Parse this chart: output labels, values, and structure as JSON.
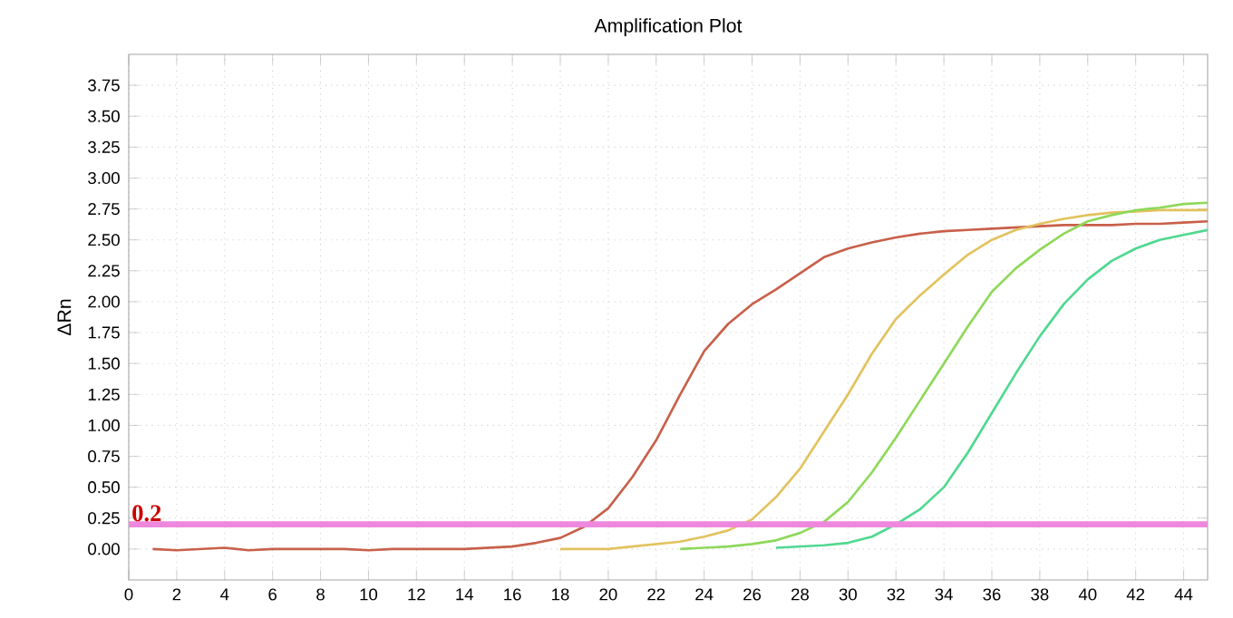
{
  "chart_data": {
    "type": "line",
    "title": "Amplification Plot",
    "ylabel": "ΔRn",
    "x": [
      1,
      2,
      3,
      4,
      5,
      6,
      7,
      8,
      9,
      10,
      11,
      12,
      13,
      14,
      15,
      16,
      17,
      18,
      19,
      20,
      21,
      22,
      23,
      24,
      25,
      26,
      27,
      28,
      29,
      30,
      31,
      32,
      33,
      34,
      35,
      36,
      37,
      38,
      39,
      40,
      41,
      42,
      43,
      44,
      45
    ],
    "series": [
      {
        "color": "#c8604a",
        "values": [
          0,
          -0.01,
          0,
          0.01,
          -0.01,
          0,
          0,
          0,
          0,
          -0.01,
          0,
          0,
          0,
          0,
          0.01,
          0.02,
          0.05,
          0.09,
          0.18,
          0.33,
          0.58,
          0.88,
          1.25,
          1.6,
          1.82,
          1.98,
          2.1,
          2.23,
          2.36,
          2.43,
          2.48,
          2.52,
          2.55,
          2.57,
          2.58,
          2.59,
          2.6,
          2.61,
          2.62,
          2.62,
          2.62,
          2.63,
          2.63,
          2.64,
          2.65
        ]
      },
      {
        "color": "#e2c25e",
        "values": [
          null,
          null,
          null,
          null,
          null,
          null,
          null,
          null,
          null,
          null,
          null,
          null,
          null,
          null,
          null,
          null,
          null,
          0,
          0,
          0,
          0.02,
          0.04,
          0.06,
          0.1,
          0.15,
          0.24,
          0.42,
          0.65,
          0.95,
          1.25,
          1.58,
          1.86,
          2.05,
          2.22,
          2.38,
          2.5,
          2.58,
          2.63,
          2.67,
          2.7,
          2.72,
          2.73,
          2.74,
          2.74,
          2.74
        ]
      },
      {
        "color": "#8ed85a",
        "values": [
          null,
          null,
          null,
          null,
          null,
          null,
          null,
          null,
          null,
          null,
          null,
          null,
          null,
          null,
          null,
          null,
          null,
          null,
          null,
          null,
          null,
          null,
          0,
          0.01,
          0.02,
          0.04,
          0.07,
          0.13,
          0.22,
          0.38,
          0.62,
          0.9,
          1.2,
          1.5,
          1.8,
          2.08,
          2.27,
          2.42,
          2.55,
          2.65,
          2.7,
          2.74,
          2.76,
          2.79,
          2.8
        ]
      },
      {
        "color": "#50d890",
        "values": [
          null,
          null,
          null,
          null,
          null,
          null,
          null,
          null,
          null,
          null,
          null,
          null,
          null,
          null,
          null,
          null,
          null,
          null,
          null,
          null,
          null,
          null,
          null,
          null,
          null,
          null,
          0.01,
          0.02,
          0.03,
          0.05,
          0.1,
          0.2,
          0.32,
          0.5,
          0.78,
          1.1,
          1.42,
          1.72,
          1.98,
          2.18,
          2.33,
          2.43,
          2.5,
          2.54,
          2.58
        ]
      }
    ],
    "xlim": [
      0,
      45
    ],
    "xticks": [
      0,
      2,
      4,
      6,
      8,
      10,
      12,
      14,
      16,
      18,
      20,
      22,
      24,
      26,
      28,
      30,
      32,
      34,
      36,
      38,
      40,
      42,
      44
    ],
    "ylim": [
      -0.25,
      4.0
    ],
    "yticks": [
      {
        "value": 0,
        "label": "0.00"
      },
      {
        "value": 0.25,
        "label": "0.25"
      },
      {
        "value": 0.5,
        "label": "0.50"
      },
      {
        "value": 0.75,
        "label": "0.75"
      },
      {
        "value": 1,
        "label": "1.00"
      },
      {
        "value": 1.25,
        "label": "1.25"
      },
      {
        "value": 1.5,
        "label": "1.50"
      },
      {
        "value": 1.75,
        "label": "1.75"
      },
      {
        "value": 2,
        "label": "2.00"
      },
      {
        "value": 2.25,
        "label": "2.25"
      },
      {
        "value": 2.5,
        "label": "2.50"
      },
      {
        "value": 2.75,
        "label": "2.75"
      },
      {
        "value": 3,
        "label": "3.00"
      },
      {
        "value": 3.25,
        "label": "3.25"
      },
      {
        "value": 3.5,
        "label": "3.50"
      },
      {
        "value": 3.75,
        "label": "3.75"
      }
    ],
    "ref_lines": [
      {
        "axis": "y",
        "value": 0.2,
        "label": "0.2",
        "color": "#ee88dd"
      }
    ],
    "grid": true,
    "marker": "none",
    "line_style": "solid"
  }
}
